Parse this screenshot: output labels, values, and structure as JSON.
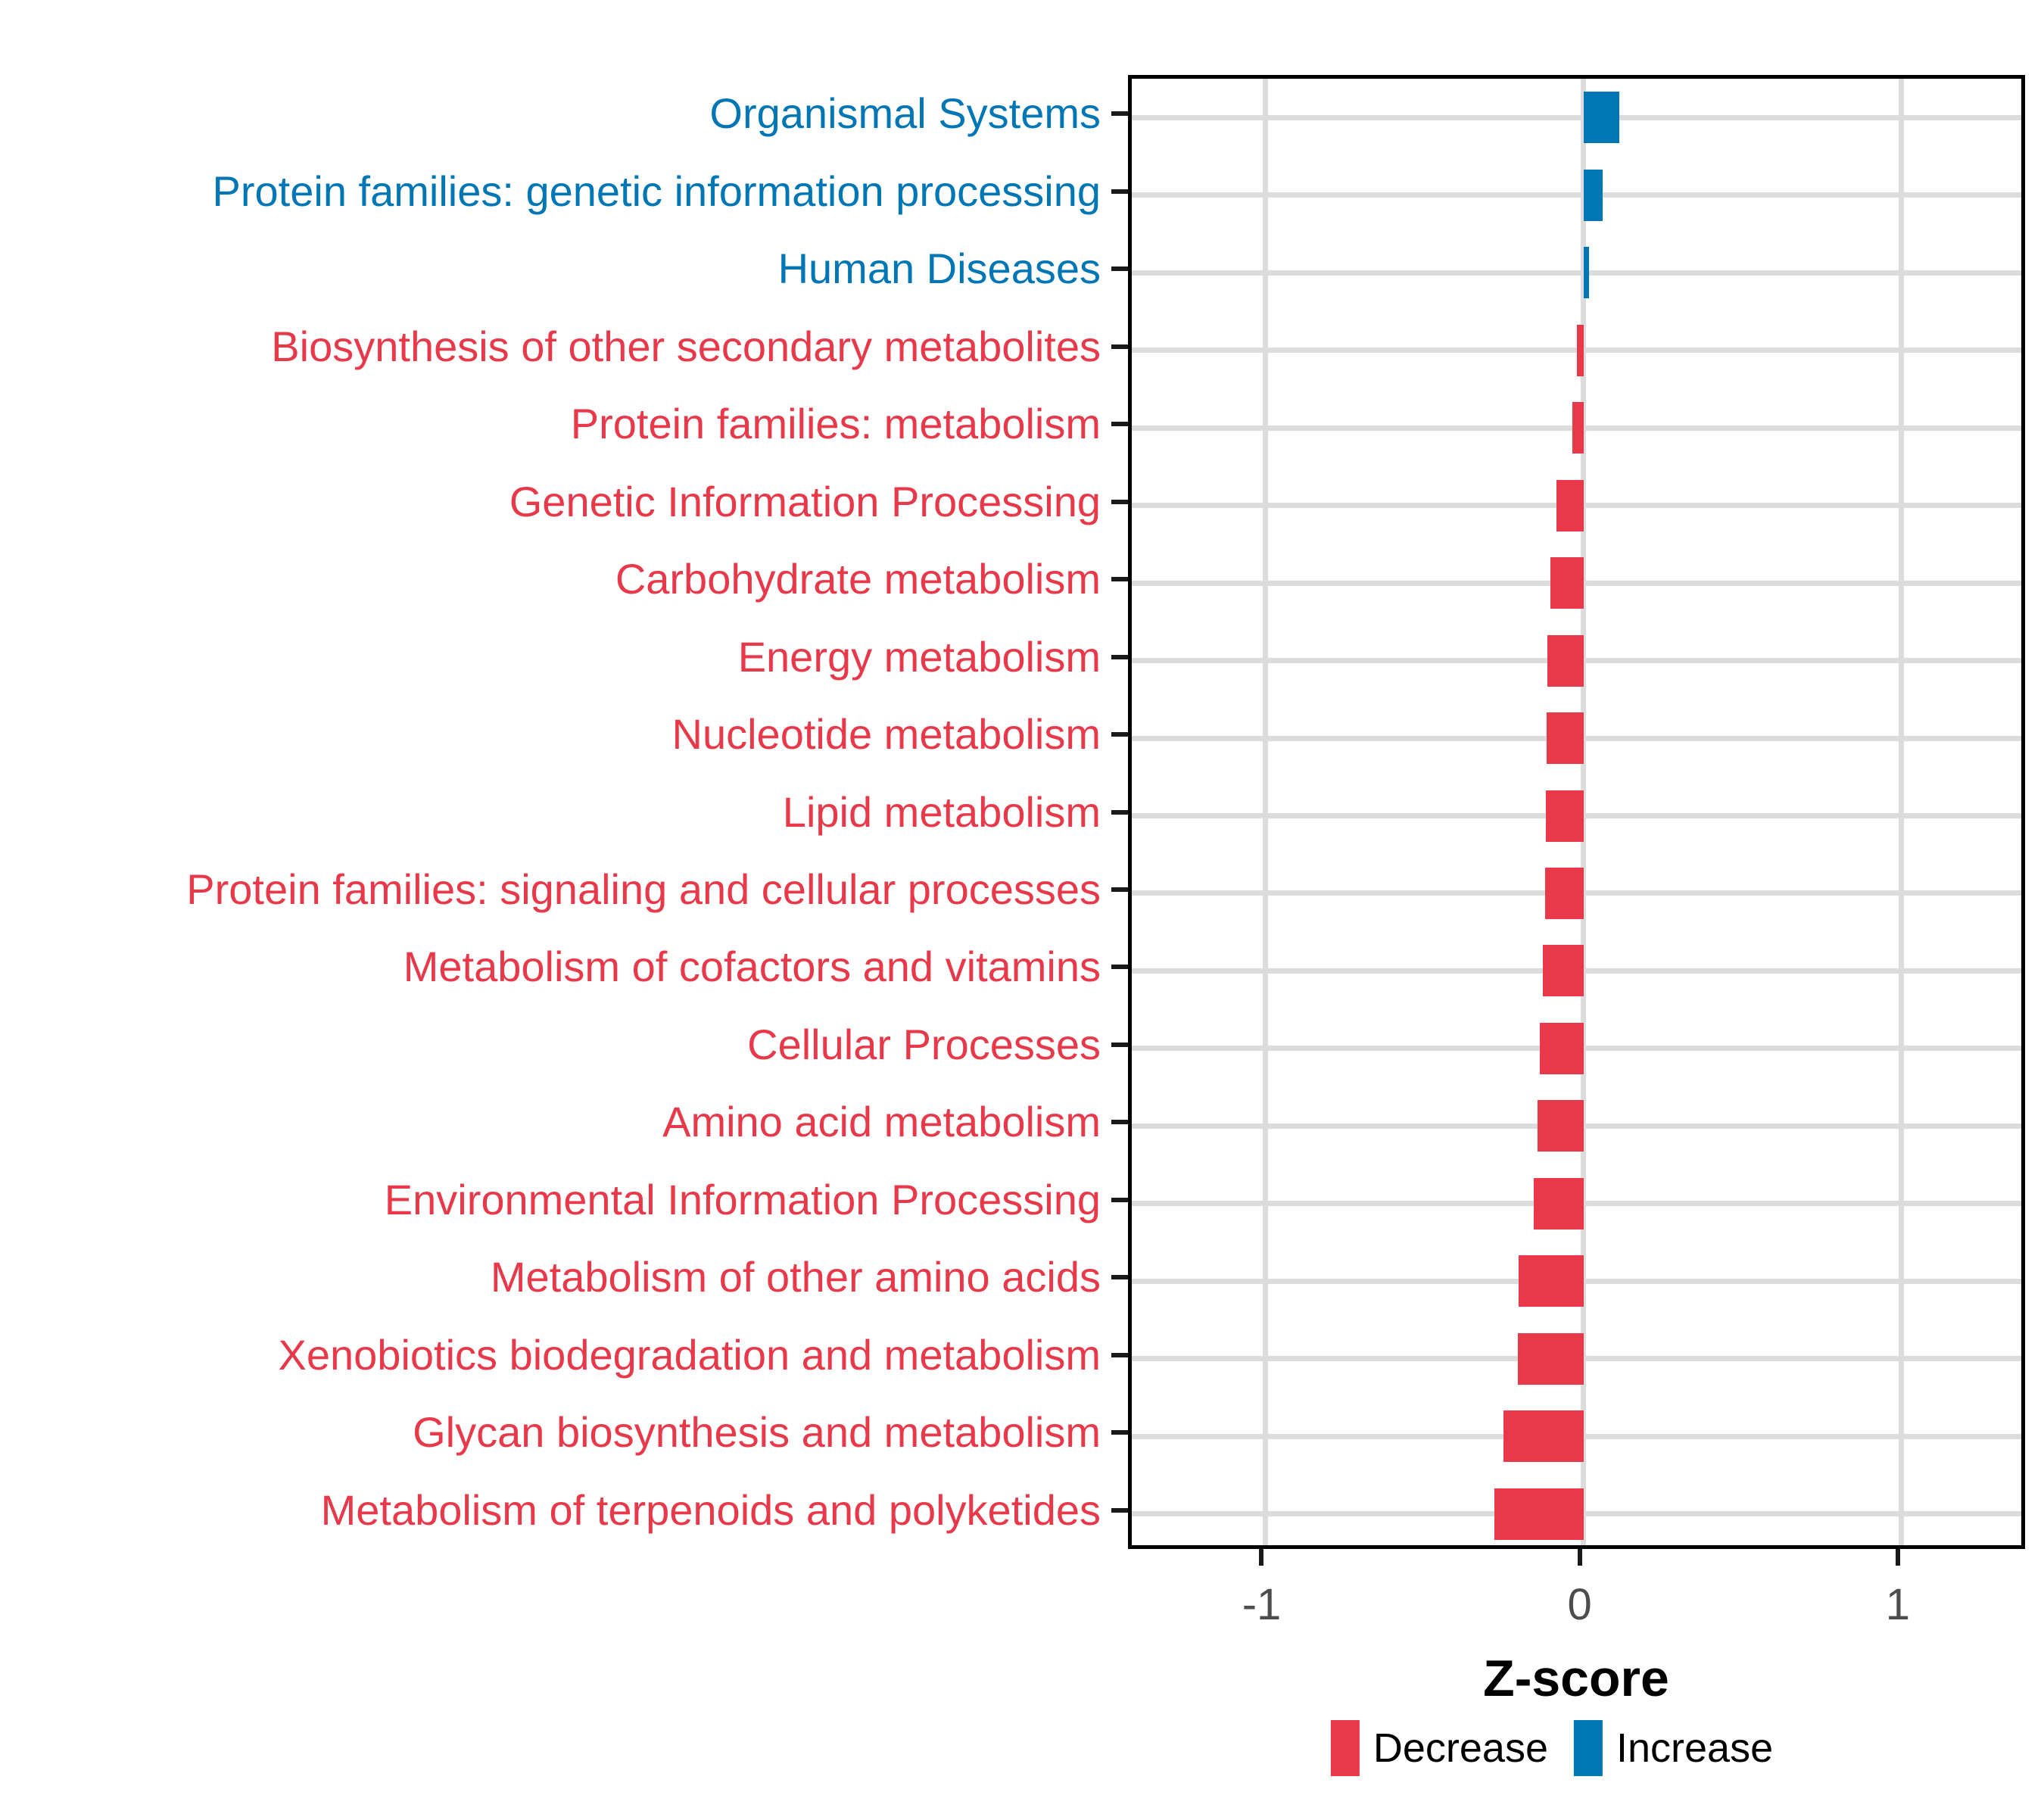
{
  "colors": {
    "decrease": "#E7394A",
    "increase": "#0076B5",
    "gridline": "#DCDCDC",
    "panel_border": "#000000",
    "axis_tick": "#1A1A1A",
    "x_tick_label": "#4D4D4D",
    "axis_title": "#000000",
    "background": "#FFFFFF"
  },
  "axis": {
    "xlabel": "Z-score",
    "tick_labels": [
      "-1",
      "0",
      "1"
    ]
  },
  "legend": {
    "decrease_label": "Decrease",
    "increase_label": "Increase"
  },
  "chart_data": {
    "type": "bar",
    "orientation": "horizontal",
    "xlabel": "Z-score",
    "ylabel": "",
    "xlim": [
      -1.42,
      1.4
    ],
    "x_ticks": [
      -1,
      0,
      1
    ],
    "grid": "major-only",
    "legend_position": "bottom",
    "series_colors": {
      "Increase": "#0076B5",
      "Decrease": "#E7394A"
    },
    "categories": [
      {
        "label": "Organismal Systems",
        "value": 0.113,
        "direction": "Increase"
      },
      {
        "label": "Protein families: genetic information processing",
        "value": 0.061,
        "direction": "Increase"
      },
      {
        "label": "Human Diseases",
        "value": 0.017,
        "direction": "Increase"
      },
      {
        "label": "Biosynthesis of other secondary metabolites",
        "value": -0.021,
        "direction": "Decrease"
      },
      {
        "label": "Protein families: metabolism",
        "value": -0.035,
        "direction": "Decrease"
      },
      {
        "label": "Genetic Information Processing",
        "value": -0.085,
        "direction": "Decrease"
      },
      {
        "label": "Carbohydrate metabolism",
        "value": -0.105,
        "direction": "Decrease"
      },
      {
        "label": "Energy metabolism",
        "value": -0.113,
        "direction": "Decrease"
      },
      {
        "label": "Nucleotide metabolism",
        "value": -0.115,
        "direction": "Decrease"
      },
      {
        "label": "Lipid metabolism",
        "value": -0.118,
        "direction": "Decrease"
      },
      {
        "label": "Protein families: signaling and cellular processes",
        "value": -0.121,
        "direction": "Decrease"
      },
      {
        "label": "Metabolism of cofactors and vitamins",
        "value": -0.128,
        "direction": "Decrease"
      },
      {
        "label": "Cellular Processes",
        "value": -0.138,
        "direction": "Decrease"
      },
      {
        "label": "Amino acid metabolism",
        "value": -0.145,
        "direction": "Decrease"
      },
      {
        "label": "Environmental Information Processing",
        "value": -0.157,
        "direction": "Decrease"
      },
      {
        "label": "Metabolism of other amino acids",
        "value": -0.204,
        "direction": "Decrease"
      },
      {
        "label": "Xenobiotics biodegradation and metabolism",
        "value": -0.207,
        "direction": "Decrease"
      },
      {
        "label": "Glycan biosynthesis and metabolism",
        "value": -0.252,
        "direction": "Decrease"
      },
      {
        "label": "Metabolism of terpenoids and polyketides",
        "value": -0.281,
        "direction": "Decrease"
      }
    ]
  }
}
